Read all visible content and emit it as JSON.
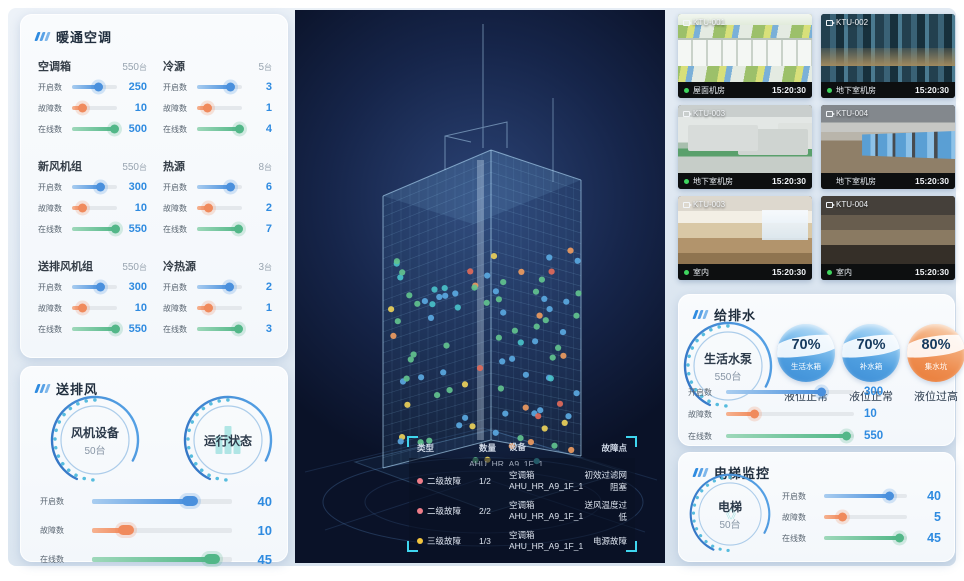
{
  "colors": {
    "accent_blue": "#2f8be0",
    "accent_orange": "#f08a5c",
    "accent_green": "#52b788",
    "alarm_pink": "#ee7d89",
    "alarm_yellow": "#f3c53d",
    "bracket_cyan": "#3fd6ef",
    "dot_palette": [
      "#62c28e",
      "#5aa8e0",
      "#49c0c8",
      "#ead05a",
      "#ec9a5f",
      "#e06a5a"
    ]
  },
  "hvac": {
    "title": "暖通空调",
    "groups": [
      {
        "name": "空调箱",
        "count": "550",
        "unit": "台",
        "sliders": [
          {
            "label": "开启数",
            "value": "250",
            "pct": 58
          },
          {
            "label": "故障数",
            "value": "10",
            "pct": 22
          },
          {
            "label": "在线数",
            "value": "500",
            "pct": 93
          }
        ]
      },
      {
        "name": "冷源",
        "count": "5",
        "unit": "台",
        "sliders": [
          {
            "label": "开启数",
            "value": "3",
            "pct": 74
          },
          {
            "label": "故障数",
            "value": "1",
            "pct": 22
          },
          {
            "label": "在线数",
            "value": "4",
            "pct": 93
          }
        ]
      },
      {
        "name": "新风机组",
        "count": "550",
        "unit": "台",
        "sliders": [
          {
            "label": "开启数",
            "value": "300",
            "pct": 62
          },
          {
            "label": "故障数",
            "value": "10",
            "pct": 22
          },
          {
            "label": "在线数",
            "value": "550",
            "pct": 96
          }
        ]
      },
      {
        "name": "热源",
        "count": "8",
        "unit": "台",
        "sliders": [
          {
            "label": "开启数",
            "value": "6",
            "pct": 74
          },
          {
            "label": "故障数",
            "value": "2",
            "pct": 24
          },
          {
            "label": "在线数",
            "value": "7",
            "pct": 92
          }
        ]
      },
      {
        "name": "送排风机组",
        "count": "550",
        "unit": "台",
        "sliders": [
          {
            "label": "开启数",
            "value": "300",
            "pct": 62
          },
          {
            "label": "故障数",
            "value": "10",
            "pct": 22
          },
          {
            "label": "在线数",
            "value": "550",
            "pct": 96
          }
        ]
      },
      {
        "name": "冷热源",
        "count": "3",
        "unit": "台",
        "sliders": [
          {
            "label": "开启数",
            "value": "2",
            "pct": 70
          },
          {
            "label": "故障数",
            "value": "1",
            "pct": 24
          },
          {
            "label": "在线数",
            "value": "3",
            "pct": 92
          }
        ]
      }
    ]
  },
  "fan": {
    "title": "送排风",
    "gauges": [
      {
        "label": "风机设备",
        "count": "50台"
      },
      {
        "label": "运行状态",
        "count": ""
      }
    ],
    "sliders": [
      {
        "label": "开启数",
        "value": "40",
        "pct": 70
      },
      {
        "label": "故障数",
        "value": "10",
        "pct": 24
      },
      {
        "label": "在线数",
        "value": "45",
        "pct": 86
      }
    ]
  },
  "center": {
    "table": {
      "headers": [
        "类型",
        "数量",
        "设备",
        "故障点"
      ],
      "clipped_device": "AHU_HR_A9_1F_1",
      "rows": [
        {
          "level": "二级故障",
          "dot": "#ee7d89",
          "qty": "1/2",
          "device_type": "空调箱",
          "device_id": "AHU_HR_A9_1F_1",
          "fault": "初效过滤网阻塞"
        },
        {
          "level": "二级故障",
          "dot": "#ee7d89",
          "qty": "2/2",
          "device_type": "空调箱",
          "device_id": "AHU_HR_A9_1F_1",
          "fault": "送风温度过低"
        },
        {
          "level": "三级故障",
          "dot": "#f3c53d",
          "qty": "1/3",
          "device_type": "空调箱",
          "device_id": "AHU_HR_A9_1F_1",
          "fault": "电源故障"
        }
      ]
    }
  },
  "cameras": [
    {
      "id": "KTU-001",
      "location": "屋面机房",
      "time": "15:20:30",
      "online": true
    },
    {
      "id": "KTU-002",
      "location": "地下室机房",
      "time": "15:20:30",
      "online": true
    },
    {
      "id": "KTU-003",
      "location": "地下室机房",
      "time": "15:20:30",
      "online": true
    },
    {
      "id": "KTU-004",
      "location": "地下室机房",
      "time": "15:20:30",
      "online": false
    },
    {
      "id": "KTU-003",
      "location": "室内",
      "time": "15:20:30",
      "online": true
    },
    {
      "id": "KTU-004",
      "location": "室内",
      "time": "15:20:30",
      "online": true
    }
  ],
  "water": {
    "title": "给排水",
    "gauge": {
      "label": "生活水泵",
      "count": "550台"
    },
    "tanks": [
      {
        "pct": "70%",
        "name": "生活水箱",
        "status": "液位正常",
        "tone": "blue"
      },
      {
        "pct": "70%",
        "name": "补水箱",
        "status": "液位正常",
        "tone": "blue"
      },
      {
        "pct": "80%",
        "name": "集水坑",
        "status": "液位过高",
        "tone": "orange"
      }
    ],
    "sliders": [
      {
        "label": "开启数",
        "value": "300",
        "pct": 74
      },
      {
        "label": "故障数",
        "value": "10",
        "pct": 22
      },
      {
        "label": "在线数",
        "value": "550",
        "pct": 94
      }
    ]
  },
  "elevator": {
    "title": "电梯监控",
    "gauge": {
      "label": "电梯",
      "count": "50台"
    },
    "sliders": [
      {
        "label": "开启数",
        "value": "40",
        "pct": 78
      },
      {
        "label": "故障数",
        "value": "5",
        "pct": 22
      },
      {
        "label": "在线数",
        "value": "45",
        "pct": 90
      }
    ]
  }
}
